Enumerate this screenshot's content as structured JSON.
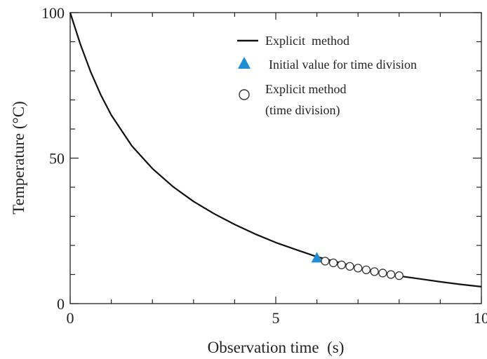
{
  "chart_data": {
    "type": "line",
    "xlabel": "Observation time  (s)",
    "ylabel": "Temperature (°C)",
    "xlim": [
      0,
      10
    ],
    "ylim": [
      0,
      100
    ],
    "x_ticks": [
      0,
      5,
      10
    ],
    "y_ticks": [
      0,
      50,
      100
    ],
    "x_tick_labels": [
      "0",
      "5",
      "10"
    ],
    "y_tick_labels": [
      "0",
      "50",
      "100"
    ],
    "x_minor_step": 1,
    "y_minor_step": 10,
    "grid": false,
    "legend_position": "top-right",
    "legend": [
      {
        "label": "Explicit  method",
        "marker": "line"
      },
      {
        "label": "Initial value for time division",
        "marker": "triangle"
      },
      {
        "label_lines": [
          "Explicit method",
          "(time division)"
        ],
        "marker": "circle"
      }
    ],
    "series": [
      {
        "name": "Explicit method",
        "style": "line",
        "color": "#111111",
        "x": [
          0,
          0.25,
          0.5,
          0.75,
          1,
          1.5,
          2,
          2.5,
          3,
          3.5,
          4,
          4.5,
          5,
          5.5,
          6,
          6.5,
          7,
          7.5,
          8,
          8.5,
          9,
          9.5,
          10
        ],
        "y": [
          100,
          89,
          79.6,
          71.6,
          64.8,
          54.2,
          46.4,
          40.2,
          35.1,
          30.9,
          27.2,
          23.9,
          21,
          18.5,
          16.1,
          14.3,
          12.4,
          10.9,
          9.5,
          8.5,
          7.5,
          6.6,
          5.8
        ]
      },
      {
        "name": "Initial value for time division",
        "style": "triangle",
        "color": "#1e8fd6",
        "x": [
          6
        ],
        "y": [
          15.8
        ]
      },
      {
        "name": "Explicit method (time division)",
        "style": "circle",
        "color": "#333333",
        "x": [
          6.2,
          6.4,
          6.6,
          6.8,
          7.0,
          7.2,
          7.4,
          7.6,
          7.8,
          8.0
        ],
        "y": [
          14.6,
          14.0,
          13.3,
          12.8,
          12.2,
          11.6,
          11.0,
          10.5,
          10.0,
          9.6
        ]
      }
    ]
  }
}
